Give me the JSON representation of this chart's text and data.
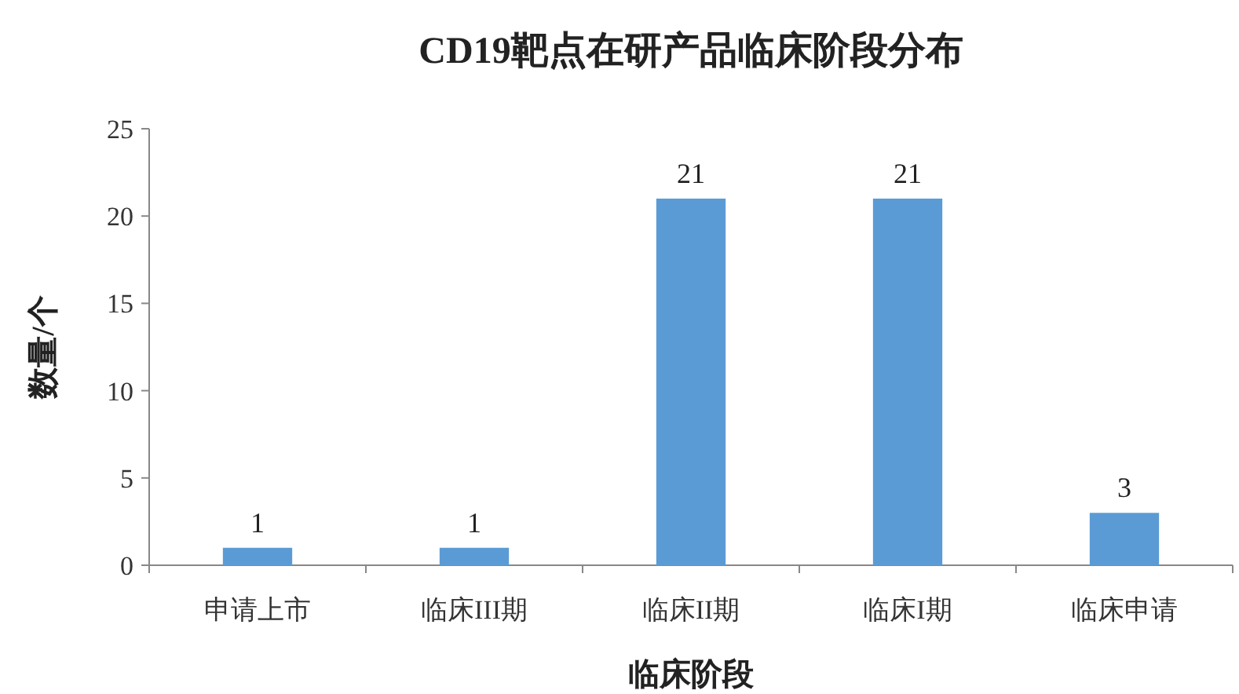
{
  "chart_data": {
    "type": "bar",
    "title": "CD19靶点在研产品临床阶段分布",
    "xlabel": "临床阶段",
    "ylabel": "数量/个",
    "categories": [
      "申请上市",
      "临床III期",
      "临床II期",
      "临床I期",
      "临床申请"
    ],
    "values": [
      1,
      1,
      21,
      21,
      3
    ],
    "color": "#5b9bd5",
    "ylim": [
      0,
      25
    ],
    "yticks": [
      0,
      5,
      10,
      15,
      20,
      25
    ],
    "data_labels": true
  }
}
